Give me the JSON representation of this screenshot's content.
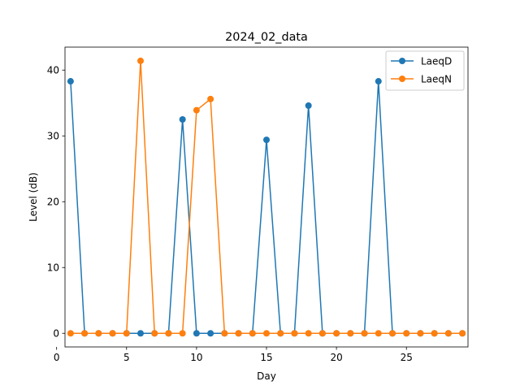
{
  "chart_data": {
    "type": "line",
    "title": "2024_02_data",
    "xlabel": "Day",
    "ylabel": "Level (dB)",
    "xlim": [
      0.6,
      29.4
    ],
    "ylim": [
      -2.07,
      43.49
    ],
    "xticks": [
      0,
      5,
      10,
      15,
      20,
      25
    ],
    "yticks": [
      0,
      10,
      20,
      30,
      40
    ],
    "grid": false,
    "legend": "top-right",
    "x": [
      1,
      2,
      3,
      4,
      5,
      6,
      7,
      8,
      9,
      10,
      11,
      12,
      13,
      14,
      15,
      16,
      17,
      18,
      19,
      20,
      21,
      22,
      23,
      24,
      25,
      26,
      27,
      28,
      29
    ],
    "series": [
      {
        "name": "LaeqD",
        "color": "#1f77b4",
        "values": [
          38.3,
          0,
          0,
          0,
          0,
          0,
          0,
          0,
          32.5,
          0,
          0,
          0,
          0,
          0,
          29.4,
          0,
          0,
          34.6,
          0,
          0,
          0,
          0,
          38.3,
          0,
          0,
          0,
          0,
          0,
          0
        ]
      },
      {
        "name": "LaeqN",
        "color": "#ff7f0e",
        "values": [
          0,
          0,
          0,
          0,
          0,
          41.4,
          0,
          0,
          0,
          33.9,
          35.6,
          0,
          0,
          0,
          0,
          0,
          0,
          0,
          0,
          0,
          0,
          0,
          0,
          0,
          0,
          0,
          0,
          0,
          0
        ]
      }
    ]
  }
}
